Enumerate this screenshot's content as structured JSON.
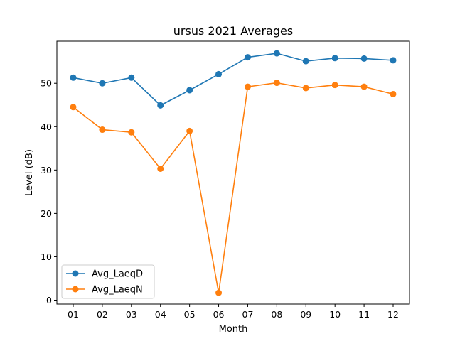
{
  "chart_data": {
    "type": "line",
    "title": "ursus 2021 Averages",
    "xlabel": "Month",
    "ylabel": "Level (dB)",
    "categories": [
      "01",
      "02",
      "03",
      "04",
      "05",
      "06",
      "07",
      "08",
      "09",
      "10",
      "11",
      "12"
    ],
    "ylim": [
      -0.9,
      59.7
    ],
    "yticks": [
      0,
      10,
      20,
      30,
      40,
      50
    ],
    "grid": false,
    "legend_position": "lower-left",
    "series": [
      {
        "name": "Avg_LaeqD",
        "color": "#1f77b4",
        "values": [
          51.3,
          50.0,
          51.3,
          44.9,
          48.4,
          52.1,
          56.0,
          56.9,
          55.1,
          55.8,
          55.7,
          55.3
        ]
      },
      {
        "name": "Avg_LaeqN",
        "color": "#ff7f0e",
        "values": [
          44.5,
          39.3,
          38.7,
          30.3,
          39.0,
          1.7,
          49.2,
          50.1,
          48.9,
          49.6,
          49.2,
          47.5
        ]
      }
    ]
  }
}
